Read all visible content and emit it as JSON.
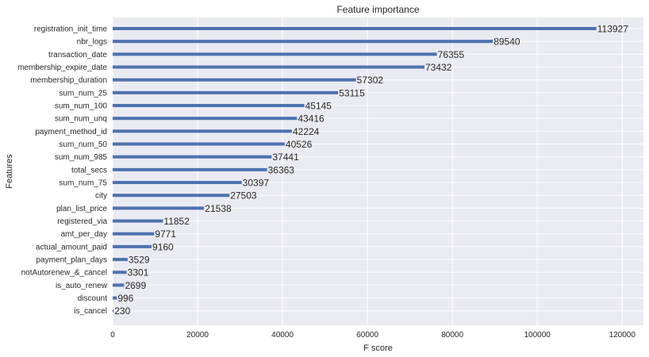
{
  "chart_data": {
    "type": "bar",
    "orientation": "horizontal",
    "title": "Feature importance",
    "xlabel": "F score",
    "ylabel": "Features",
    "xlim": [
      0,
      125000
    ],
    "xticks": [
      0,
      20000,
      40000,
      60000,
      80000,
      100000,
      120000
    ],
    "grid": true,
    "categories": [
      "registration_init_time",
      "nbr_logs",
      "transaction_date",
      "membership_expire_date",
      "membership_duration",
      "sum_num_25",
      "sum_num_100",
      "sum_num_unq",
      "payment_method_id",
      "sum_num_50",
      "sum_num_985",
      "total_secs",
      "sum_num_75",
      "city",
      "plan_list_price",
      "registered_via",
      "amt_per_day",
      "actual_amount_paid",
      "payment_plan_days",
      "notAutorenew_&_cancel",
      "is_auto_renew",
      "discount",
      "is_cancel"
    ],
    "values": [
      113927,
      89540,
      76355,
      73432,
      57302,
      53115,
      45145,
      43416,
      42224,
      40526,
      37441,
      36363,
      30397,
      27503,
      21538,
      11852,
      9771,
      9160,
      3529,
      3301,
      2699,
      996,
      230
    ],
    "value_labels": [
      "113927",
      "89540",
      "76355",
      "73432",
      "57302",
      "53115",
      "45145",
      "43416",
      "42224",
      "40526",
      "37441",
      "36363",
      "30397",
      "27503",
      "21538",
      "11852",
      "9771",
      "9160",
      "3529",
      "3301",
      "2699",
      "996",
      "230"
    ],
    "colors": {
      "bar": "#4c72b0",
      "plot_background": "#eaeaf2",
      "grid": "#ffffff"
    }
  }
}
